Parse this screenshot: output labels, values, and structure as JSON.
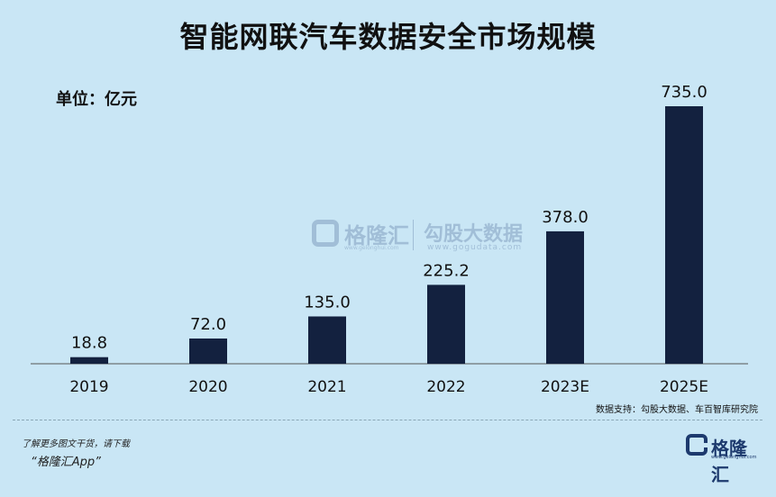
{
  "header": {
    "title": "智能网联汽车数据安全市场规模",
    "unit_label": "单位：亿元"
  },
  "chart_data": {
    "type": "bar",
    "categories": [
      "2019",
      "2020",
      "2021",
      "2022",
      "2023E",
      "2025E"
    ],
    "values": [
      18.8,
      72.0,
      135.0,
      225.2,
      378.0,
      735.0
    ],
    "value_labels": [
      "18.8",
      "72.0",
      "135.0",
      "225.2",
      "378.0",
      "735.0"
    ],
    "title": "智能网联汽车数据安全市场规模",
    "xlabel": "",
    "ylabel": "",
    "ylim": [
      0,
      735
    ],
    "grid": false,
    "bar_color": "#13213f"
  },
  "source": "数据支持：勾股大数据、车百智库研究院",
  "footer": {
    "note": "了解更多图文干货，请下载",
    "app": "“格隆汇App”"
  },
  "watermark": {
    "brand": "格隆汇",
    "brand_url": "www.gelonghui.com",
    "partner": "勾股大数据",
    "partner_url": "www.gogudata.com"
  },
  "logo": {
    "name": "格隆汇",
    "url": "www.gelonghui.com"
  },
  "colors": {
    "background": "#c9e6f5",
    "bar": "#13213f",
    "axis": "#555555"
  }
}
